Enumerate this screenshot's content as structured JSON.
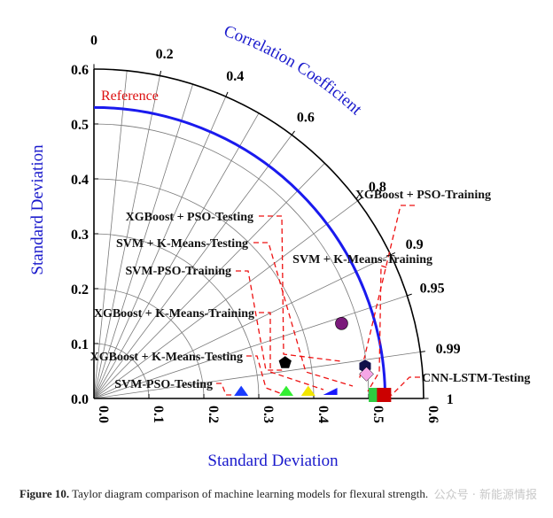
{
  "chart_data": {
    "type": "taylor",
    "xlabel": "Standard Deviation",
    "ylabel": "Standard Deviation",
    "corr_title": "Correlation Coefficient",
    "reference_label": "Reference",
    "reference_std": 0.53,
    "std_range": [
      0,
      0.6
    ],
    "y_ticks": [
      "0.0",
      "0.1",
      "0.2",
      "0.3",
      "0.4",
      "0.5",
      "0.6"
    ],
    "x_ticks": [
      "0.0",
      "0.1",
      "0.2",
      "0.3",
      "0.4",
      "0.5",
      "0.6"
    ],
    "corr_ticks": [
      "0",
      "0.2",
      "0.4",
      "0.6",
      "0.8",
      "0.9",
      "0.95",
      "0.99",
      "1"
    ],
    "points": [
      {
        "name": "XGBoost + PSO-Training",
        "std": 0.497,
        "corr": 0.993,
        "marker": "hexagon",
        "color": "#10104a"
      },
      {
        "name": "XGBoost + PSO-Testing",
        "std": 0.471,
        "corr": 0.957,
        "marker": "circle",
        "color": "#7b1a7b"
      },
      {
        "name": "SVM + K-Means-Testing",
        "std": 0.498,
        "corr": 0.996,
        "marker": "diamond",
        "color": "#f5a6e6"
      },
      {
        "name": "SVM + K-Means-Training",
        "std": 0.513,
        "corr": 1.0,
        "marker": "square",
        "color": "#2ecc40"
      },
      {
        "name": "SVM-PSO-Training",
        "std": 0.354,
        "corr": 0.983,
        "marker": "pentagon",
        "color": "#000000"
      },
      {
        "name": "XGBoost + K-Means-Training",
        "std": 0.43,
        "corr": 1.0,
        "marker": "triangle-left",
        "color": "#1a1aff"
      },
      {
        "name": "XGBoost + K-Means-Testing",
        "std": 0.35,
        "corr": 1.0,
        "marker": "triangle",
        "color": "#33ee33"
      },
      {
        "name": "SVM-PSO-Testing",
        "std": 0.268,
        "corr": 1.0,
        "marker": "triangle",
        "color": "#1a3cff"
      },
      {
        "name": "CNN-LSTM-Testing",
        "std": 0.528,
        "corr": 1.0,
        "marker": "square",
        "color": "#cc0000"
      },
      {
        "name": "",
        "std": 0.39,
        "corr": 1.0,
        "marker": "triangle",
        "color": "#f2e600"
      }
    ]
  },
  "caption_label": "Figure 10.",
  "caption_text": "Taylor diagram comparison of machine learning models for flexural strength.",
  "watermark": "公众号 · 新能源情报"
}
